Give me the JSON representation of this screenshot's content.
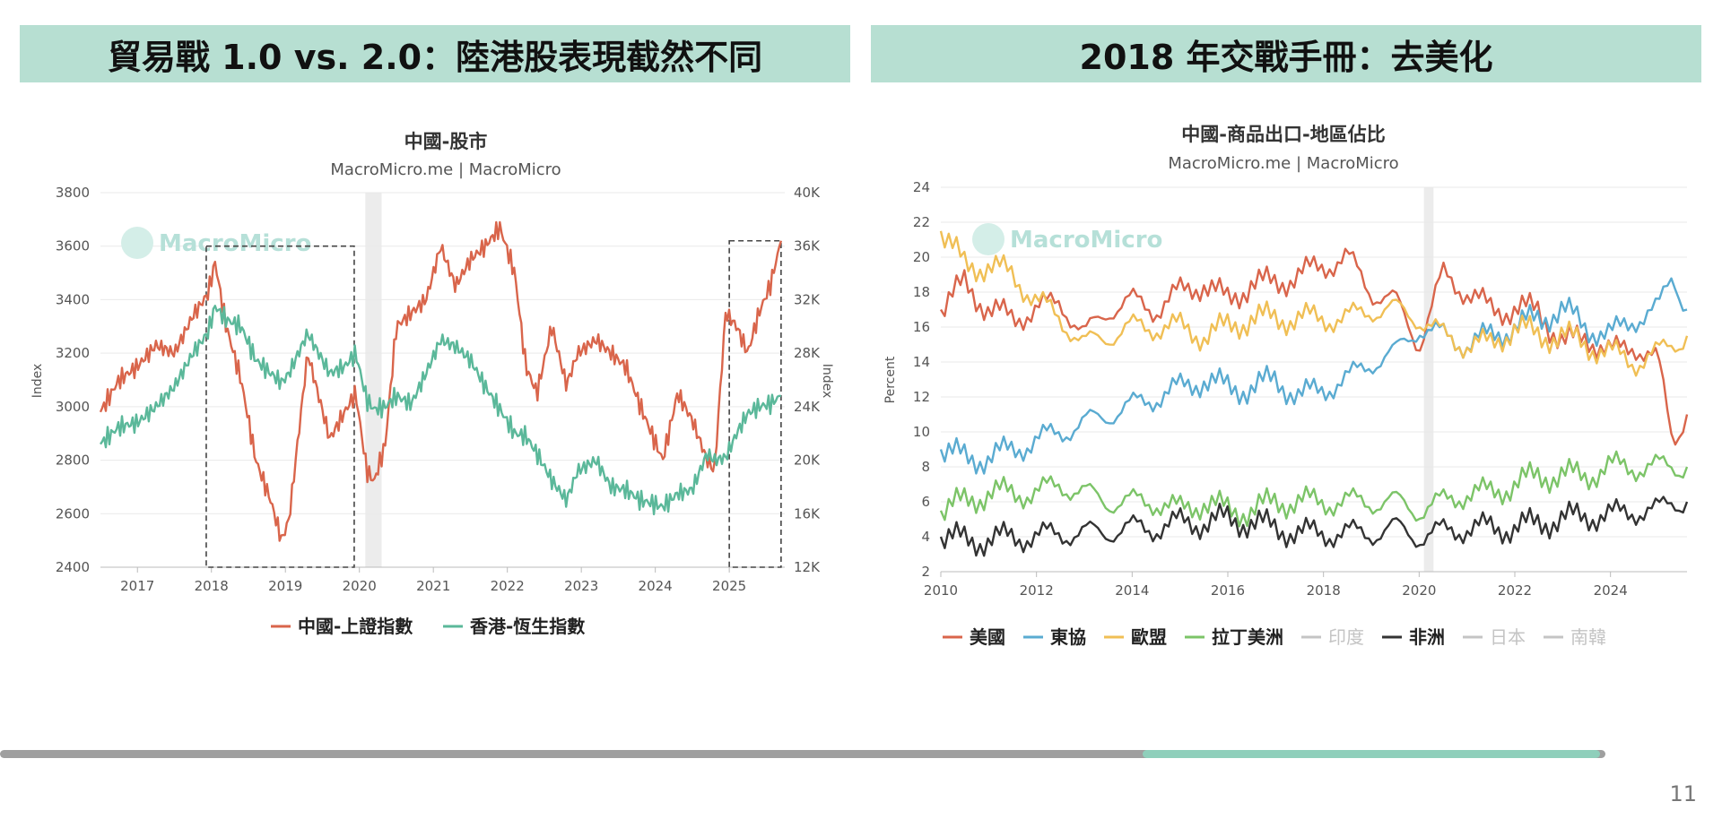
{
  "slide": {
    "left_title": "貿易戰 1.0 vs. 2.0：陸港股表現截然不同",
    "right_title": "2018 年交戰手冊：去美化",
    "page_number": "11",
    "progress": 0.712,
    "colors": {
      "banner": "#b7dfd2",
      "progress_track": "#9f9f9f",
      "progress_fill": "#8fcfbb"
    }
  },
  "chart_data": [
    {
      "type": "line",
      "title": "中國-股市",
      "subtitle": "MacroMicro.me | MacroMicro",
      "watermark": "MacroMicro",
      "ylabel": "Index",
      "y2label": "Index",
      "xlim": [
        2016.5,
        2025.75
      ],
      "ylim": [
        2400,
        3800
      ],
      "y2lim": [
        12000,
        40000
      ],
      "xticks": [
        "2017",
        "2018",
        "2019",
        "2020",
        "2021",
        "2022",
        "2023",
        "2024",
        "2025"
      ],
      "yticks": [
        "2400",
        "2600",
        "2800",
        "3000",
        "3200",
        "3400",
        "3600",
        "3800"
      ],
      "y2ticks": [
        "12K",
        "16K",
        "20K",
        "24K",
        "28K",
        "32K",
        "36K",
        "40K"
      ],
      "shaded_x": [
        2020.08,
        2020.3
      ],
      "dashed_boxes": [
        {
          "x": [
            2017.93,
            2019.93
          ],
          "y": [
            2400,
            3600
          ]
        },
        {
          "x": [
            2025.0,
            2025.7
          ],
          "y": [
            2400,
            3620
          ]
        }
      ],
      "series": [
        {
          "name": "中國-上證指數",
          "axis": "left",
          "color": "#d9654b",
          "x": [
            2016.5,
            2016.75,
            2017.0,
            2017.25,
            2017.5,
            2017.75,
            2017.95,
            2018.05,
            2018.2,
            2018.4,
            2018.6,
            2018.8,
            2018.95,
            2019.05,
            2019.3,
            2019.6,
            2019.8,
            2019.95,
            2020.1,
            2020.2,
            2020.35,
            2020.5,
            2020.7,
            2020.9,
            2021.1,
            2021.3,
            2021.5,
            2021.7,
            2021.9,
            2022.1,
            2022.25,
            2022.4,
            2022.6,
            2022.8,
            2022.95,
            2023.2,
            2023.4,
            2023.6,
            2023.8,
            2023.95,
            2024.1,
            2024.3,
            2024.5,
            2024.7,
            2024.8,
            2024.95,
            2025.1,
            2025.25,
            2025.4,
            2025.55,
            2025.7
          ],
          "values": [
            2980,
            3100,
            3150,
            3230,
            3200,
            3340,
            3420,
            3540,
            3300,
            3100,
            2800,
            2650,
            2500,
            2580,
            3200,
            2880,
            2980,
            3050,
            2760,
            2720,
            2860,
            3300,
            3350,
            3400,
            3600,
            3450,
            3550,
            3600,
            3670,
            3500,
            3150,
            3050,
            3300,
            3080,
            3200,
            3250,
            3200,
            3150,
            3000,
            2900,
            2800,
            3050,
            2950,
            2800,
            2760,
            3350,
            3300,
            3200,
            3350,
            3450,
            3620
          ]
        },
        {
          "name": "香港-恆生指數",
          "axis": "right",
          "color": "#5bb89a",
          "x": [
            2016.5,
            2016.75,
            2017.0,
            2017.25,
            2017.5,
            2017.75,
            2017.95,
            2018.05,
            2018.2,
            2018.4,
            2018.6,
            2018.8,
            2018.95,
            2019.05,
            2019.3,
            2019.6,
            2019.8,
            2019.95,
            2020.1,
            2020.2,
            2020.35,
            2020.5,
            2020.7,
            2020.9,
            2021.1,
            2021.3,
            2021.5,
            2021.7,
            2021.9,
            2022.1,
            2022.25,
            2022.4,
            2022.6,
            2022.8,
            2022.95,
            2023.2,
            2023.4,
            2023.6,
            2023.8,
            2023.95,
            2024.1,
            2024.3,
            2024.5,
            2024.7,
            2024.8,
            2024.95,
            2025.1,
            2025.25,
            2025.4,
            2025.55,
            2025.7
          ],
          "values": [
            21200,
            22500,
            22800,
            24000,
            25500,
            28000,
            29500,
            31500,
            30500,
            30000,
            27500,
            26500,
            25800,
            26500,
            29500,
            26500,
            27000,
            28000,
            24500,
            23800,
            24000,
            24800,
            24200,
            26500,
            29000,
            28500,
            27500,
            25500,
            23800,
            22000,
            21800,
            20500,
            18500,
            17000,
            19200,
            20000,
            18000,
            17800,
            17000,
            16800,
            16500,
            17500,
            17800,
            20500,
            20000,
            20200,
            22000,
            23500,
            24000,
            24200,
            24800
          ]
        }
      ]
    },
    {
      "type": "line",
      "title": "中國-商品出口-地區佔比",
      "subtitle": "MacroMicro.me | MacroMicro",
      "watermark": "MacroMicro",
      "ylabel": "Percent",
      "xlim": [
        2010,
        2025.6
      ],
      "ylim": [
        2,
        24
      ],
      "xticks": [
        "2010",
        "2012",
        "2014",
        "2016",
        "2018",
        "2020",
        "2022",
        "2024"
      ],
      "yticks": [
        "2",
        "4",
        "6",
        "8",
        "10",
        "12",
        "14",
        "16",
        "18",
        "20",
        "22",
        "24"
      ],
      "shaded_x": [
        2020.1,
        2020.3
      ],
      "series": [
        {
          "name": "美國",
          "color": "#d9654b",
          "visible": true,
          "x": [
            2010,
            2010.5,
            2011,
            2011.5,
            2012,
            2012.5,
            2013,
            2013.5,
            2014,
            2014.5,
            2015,
            2015.5,
            2016,
            2016.5,
            2017,
            2017.5,
            2018,
            2018.5,
            2019,
            2019.5,
            2020,
            2020.5,
            2021,
            2021.5,
            2022,
            2022.5,
            2023,
            2023.5,
            2024,
            2024.5,
            2025,
            2025.3,
            2025.6
          ],
          "values": [
            17,
            18.5,
            17,
            16.5,
            17,
            17.5,
            15.5,
            17,
            17.5,
            17,
            18,
            18.5,
            17.5,
            18.5,
            18.5,
            19,
            19.5,
            20,
            18,
            17.5,
            15,
            19,
            18,
            17,
            17,
            17,
            15,
            15.5,
            14.5,
            15,
            14,
            9.5,
            11
          ]
        },
        {
          "name": "東協",
          "color": "#5aabd1",
          "visible": true,
          "x": [
            2010,
            2010.5,
            2011,
            2011.5,
            2012,
            2012.5,
            2013,
            2013.5,
            2014,
            2014.5,
            2015,
            2015.5,
            2016,
            2016.5,
            2017,
            2017.5,
            2018,
            2018.5,
            2019,
            2019.5,
            2020,
            2020.5,
            2021,
            2021.5,
            2022,
            2022.5,
            2023,
            2023.5,
            2024,
            2024.5,
            2025,
            2025.3,
            2025.6
          ],
          "values": [
            9,
            8.5,
            8.5,
            9,
            9.5,
            10,
            10.5,
            11,
            11.5,
            12,
            12.5,
            13,
            12.5,
            12.5,
            13,
            12,
            12.5,
            13,
            14,
            14.5,
            16,
            15.5,
            15,
            15.5,
            16,
            16.5,
            17,
            16,
            15.5,
            16.5,
            17,
            19,
            17
          ]
        },
        {
          "name": "歐盟",
          "color": "#f0bf55",
          "visible": true,
          "x": [
            2010,
            2010.5,
            2011,
            2011.5,
            2012,
            2012.5,
            2013,
            2013.5,
            2014,
            2014.5,
            2015,
            2015.5,
            2016,
            2016.5,
            2017,
            2017.5,
            2018,
            2018.5,
            2019,
            2019.5,
            2020,
            2020.5,
            2021,
            2021.5,
            2022,
            2022.5,
            2023,
            2023.5,
            2024,
            2024.5,
            2025,
            2025.3,
            2025.6
          ],
          "values": [
            21.5,
            19.5,
            19.5,
            19,
            17.5,
            16.5,
            15,
            15.5,
            16,
            16,
            16,
            15.5,
            16,
            16.5,
            16.5,
            16.5,
            16.5,
            16.5,
            17,
            17,
            16.5,
            15.5,
            15,
            15,
            16,
            15.5,
            15.5,
            15,
            14.5,
            14,
            14.5,
            15,
            15.5
          ]
        },
        {
          "name": "拉丁美洲",
          "color": "#7cc468",
          "visible": true,
          "x": [
            2010,
            2010.5,
            2011,
            2011.5,
            2012,
            2012.5,
            2013,
            2013.5,
            2014,
            2014.5,
            2015,
            2015.5,
            2016,
            2016.5,
            2017,
            2017.5,
            2018,
            2018.5,
            2019,
            2019.5,
            2020,
            2020.5,
            2021,
            2021.5,
            2022,
            2022.5,
            2023,
            2023.5,
            2024,
            2024.5,
            2025,
            2025.3,
            2025.6
          ],
          "values": [
            5.5,
            6,
            6.5,
            6.5,
            6.5,
            7,
            6.5,
            6,
            6,
            6,
            5.5,
            6,
            5.5,
            5.5,
            6,
            6,
            6,
            6,
            6,
            6,
            5.5,
            6,
            6.5,
            6.5,
            7,
            7.5,
            7.5,
            7.5,
            8,
            8,
            8,
            8,
            8
          ]
        },
        {
          "name": "印度",
          "color": "#c4c4c4",
          "visible": false
        },
        {
          "name": "非洲",
          "color": "#333333",
          "visible": true,
          "x": [
            2010,
            2010.5,
            2011,
            2011.5,
            2012,
            2012.5,
            2013,
            2013.5,
            2014,
            2014.5,
            2015,
            2015.5,
            2016,
            2016.5,
            2017,
            2017.5,
            2018,
            2018.5,
            2019,
            2019.5,
            2020,
            2020.5,
            2021,
            2021.5,
            2022,
            2022.5,
            2023,
            2023.5,
            2024,
            2024.5,
            2025,
            2025.3,
            2025.6
          ],
          "values": [
            4,
            3.8,
            3.8,
            4,
            4,
            4.2,
            4.2,
            4.3,
            4.5,
            4.5,
            4.8,
            4.8,
            5,
            4.8,
            4.5,
            4.2,
            4.2,
            4.2,
            4.2,
            4.5,
            4,
            4.3,
            4.5,
            4.5,
            4.5,
            4.8,
            5,
            5.2,
            5.2,
            5.5,
            5.5,
            6,
            6
          ]
        },
        {
          "name": "日本",
          "color": "#c4c4c4",
          "visible": false
        },
        {
          "name": "南韓",
          "color": "#c4c4c4",
          "visible": false
        }
      ]
    }
  ]
}
